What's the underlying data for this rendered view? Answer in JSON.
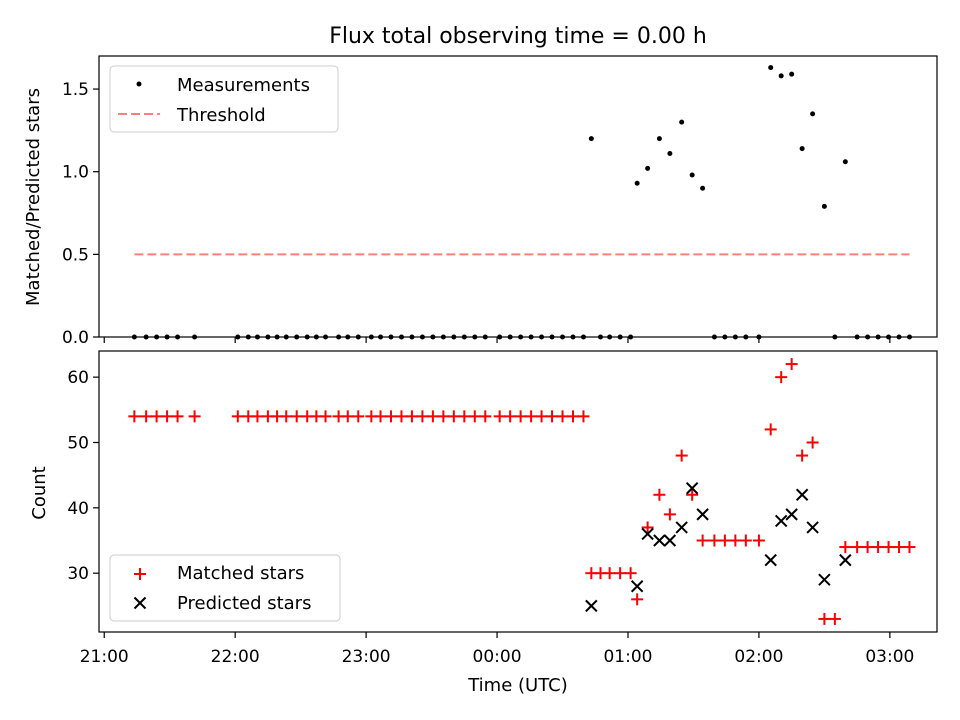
{
  "colors": {
    "matched": "#ff0000",
    "predicted": "#000000",
    "threshold": "#ff7f7f",
    "measurements": "#000000"
  },
  "chart_data": [
    {
      "type": "scatter",
      "title": "Flux total observing time = 0.00 h",
      "ylabel": "Matched/Predicted stars",
      "xlabel": "",
      "x_unit": "hours since 21:00 UTC",
      "xlim": [
        -0.04,
        6.36
      ],
      "ylim": [
        0.0,
        1.7
      ],
      "yticks": [
        0.0,
        0.5,
        1.0,
        1.5
      ],
      "ytick_labels": [
        "0.0",
        "0.5",
        "1.0",
        "1.5"
      ],
      "grid": false,
      "legend_position": "top-left",
      "series": [
        {
          "name": "Measurements",
          "marker": "dot",
          "points": [
            [
              0.23,
              0
            ],
            [
              0.32,
              0
            ],
            [
              0.4,
              0
            ],
            [
              0.48,
              0
            ],
            [
              0.56,
              0
            ],
            [
              0.69,
              0
            ],
            [
              1.02,
              0
            ],
            [
              1.1,
              0
            ],
            [
              1.17,
              0
            ],
            [
              1.25,
              0
            ],
            [
              1.32,
              0
            ],
            [
              1.39,
              0
            ],
            [
              1.47,
              0
            ],
            [
              1.55,
              0
            ],
            [
              1.62,
              0
            ],
            [
              1.69,
              0
            ],
            [
              1.79,
              0
            ],
            [
              1.86,
              0
            ],
            [
              1.94,
              0
            ],
            [
              2.04,
              0
            ],
            [
              2.11,
              0
            ],
            [
              2.19,
              0
            ],
            [
              2.27,
              0
            ],
            [
              2.35,
              0
            ],
            [
              2.43,
              0
            ],
            [
              2.51,
              0
            ],
            [
              2.59,
              0
            ],
            [
              2.67,
              0
            ],
            [
              2.75,
              0
            ],
            [
              2.83,
              0
            ],
            [
              2.91,
              0
            ],
            [
              3.02,
              0
            ],
            [
              3.1,
              0
            ],
            [
              3.18,
              0
            ],
            [
              3.26,
              0
            ],
            [
              3.34,
              0
            ],
            [
              3.42,
              0
            ],
            [
              3.5,
              0
            ],
            [
              3.58,
              0
            ],
            [
              3.66,
              0
            ],
            [
              3.79,
              0
            ],
            [
              3.86,
              0
            ],
            [
              3.94,
              0
            ],
            [
              4.02,
              0
            ],
            [
              4.66,
              0
            ],
            [
              4.74,
              0
            ],
            [
              4.82,
              0
            ],
            [
              4.9,
              0
            ],
            [
              5.0,
              0
            ],
            [
              5.58,
              0
            ],
            [
              5.75,
              0
            ],
            [
              5.83,
              0
            ],
            [
              5.91,
              0
            ],
            [
              5.99,
              0
            ],
            [
              6.07,
              0
            ],
            [
              6.15,
              0
            ],
            [
              3.72,
              1.2
            ],
            [
              4.07,
              0.93
            ],
            [
              4.15,
              1.02
            ],
            [
              4.24,
              1.2
            ],
            [
              4.32,
              1.11
            ],
            [
              4.41,
              1.3
            ],
            [
              4.49,
              0.98
            ],
            [
              4.57,
              0.9
            ],
            [
              5.09,
              1.63
            ],
            [
              5.17,
              1.58
            ],
            [
              5.25,
              1.59
            ],
            [
              5.33,
              1.14
            ],
            [
              5.41,
              1.35
            ],
            [
              5.5,
              0.79
            ],
            [
              5.66,
              1.06
            ]
          ]
        },
        {
          "name": "Threshold",
          "line_style": "dashed",
          "x_range": [
            0.23,
            6.15
          ],
          "value": 0.5
        }
      ]
    },
    {
      "type": "scatter",
      "title": "",
      "ylabel": "Count",
      "xlabel": "Time (UTC)",
      "x_unit": "hours since 21:00 UTC",
      "xlim": [
        -0.04,
        6.36
      ],
      "ylim": [
        21,
        64
      ],
      "yticks": [
        30,
        40,
        50,
        60
      ],
      "ytick_labels": [
        "30",
        "40",
        "50",
        "60"
      ],
      "xticks": [
        0,
        1,
        2,
        3,
        4,
        5,
        6
      ],
      "xtick_labels": [
        "21:00",
        "22:00",
        "23:00",
        "00:00",
        "01:00",
        "02:00",
        "03:00"
      ],
      "grid": false,
      "legend_position": "bottom-left",
      "series": [
        {
          "name": "Matched stars",
          "marker": "plus",
          "points": [
            [
              0.23,
              54
            ],
            [
              0.32,
              54
            ],
            [
              0.4,
              54
            ],
            [
              0.48,
              54
            ],
            [
              0.56,
              54
            ],
            [
              0.69,
              54
            ],
            [
              1.02,
              54
            ],
            [
              1.1,
              54
            ],
            [
              1.17,
              54
            ],
            [
              1.25,
              54
            ],
            [
              1.32,
              54
            ],
            [
              1.39,
              54
            ],
            [
              1.47,
              54
            ],
            [
              1.55,
              54
            ],
            [
              1.62,
              54
            ],
            [
              1.69,
              54
            ],
            [
              1.79,
              54
            ],
            [
              1.86,
              54
            ],
            [
              1.94,
              54
            ],
            [
              2.04,
              54
            ],
            [
              2.11,
              54
            ],
            [
              2.19,
              54
            ],
            [
              2.27,
              54
            ],
            [
              2.35,
              54
            ],
            [
              2.43,
              54
            ],
            [
              2.51,
              54
            ],
            [
              2.59,
              54
            ],
            [
              2.67,
              54
            ],
            [
              2.75,
              54
            ],
            [
              2.83,
              54
            ],
            [
              2.91,
              54
            ],
            [
              3.02,
              54
            ],
            [
              3.1,
              54
            ],
            [
              3.18,
              54
            ],
            [
              3.26,
              54
            ],
            [
              3.34,
              54
            ],
            [
              3.42,
              54
            ],
            [
              3.5,
              54
            ],
            [
              3.58,
              54
            ],
            [
              3.66,
              54
            ],
            [
              3.72,
              30
            ],
            [
              3.79,
              30
            ],
            [
              3.86,
              30
            ],
            [
              3.94,
              30
            ],
            [
              4.02,
              30
            ],
            [
              4.07,
              26
            ],
            [
              4.15,
              37
            ],
            [
              4.24,
              42
            ],
            [
              4.32,
              39
            ],
            [
              4.41,
              48
            ],
            [
              4.49,
              42
            ],
            [
              4.57,
              35
            ],
            [
              4.66,
              35
            ],
            [
              4.74,
              35
            ],
            [
              4.82,
              35
            ],
            [
              4.9,
              35
            ],
            [
              5.0,
              35
            ],
            [
              5.09,
              52
            ],
            [
              5.17,
              60
            ],
            [
              5.25,
              62
            ],
            [
              5.33,
              48
            ],
            [
              5.41,
              50
            ],
            [
              5.5,
              23
            ],
            [
              5.58,
              23
            ],
            [
              5.66,
              34
            ],
            [
              5.75,
              34
            ],
            [
              5.83,
              34
            ],
            [
              5.91,
              34
            ],
            [
              5.99,
              34
            ],
            [
              6.07,
              34
            ],
            [
              6.15,
              34
            ]
          ]
        },
        {
          "name": "Predicted stars",
          "marker": "x",
          "points": [
            [
              3.72,
              25
            ],
            [
              4.07,
              28
            ],
            [
              4.15,
              36
            ],
            [
              4.24,
              35
            ],
            [
              4.32,
              35
            ],
            [
              4.41,
              37
            ],
            [
              4.49,
              43
            ],
            [
              4.57,
              39
            ],
            [
              5.09,
              32
            ],
            [
              5.17,
              38
            ],
            [
              5.25,
              39
            ],
            [
              5.33,
              42
            ],
            [
              5.41,
              37
            ],
            [
              5.5,
              29
            ],
            [
              5.66,
              32
            ]
          ]
        }
      ]
    }
  ]
}
